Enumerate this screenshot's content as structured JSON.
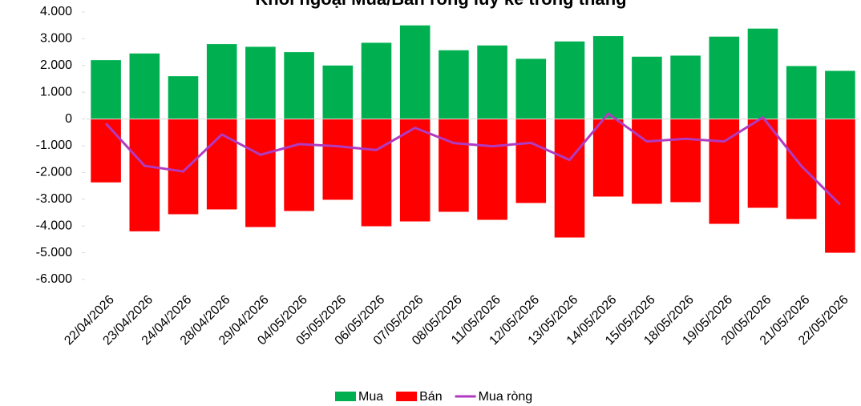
{
  "chart_data": {
    "type": "bar",
    "title": "Khối ngoại Mua/Bán ròng lũy kế trong tháng",
    "categories": [
      "22/04/2026",
      "23/04/2026",
      "24/04/2026",
      "28/04/2026",
      "29/04/2026",
      "04/05/2026",
      "05/05/2026",
      "06/05/2026",
      "07/05/2026",
      "08/05/2026",
      "11/05/2026",
      "12/05/2026",
      "13/05/2026",
      "14/05/2026",
      "15/05/2026",
      "18/05/2026",
      "19/05/2026",
      "20/05/2026",
      "21/05/2026",
      "22/05/2026"
    ],
    "series": [
      {
        "name": "Mua",
        "color": "#00b050",
        "type": "bar",
        "values": [
          2200,
          2450,
          1600,
          2800,
          2700,
          2500,
          2000,
          2850,
          3500,
          2570,
          2750,
          2250,
          2900,
          3100,
          2330,
          2370,
          3080,
          3380,
          1980,
          1800
        ]
      },
      {
        "name": "Bán",
        "color": "#ff0000",
        "type": "bar",
        "values": [
          -2370,
          -4200,
          -3560,
          -3380,
          -4040,
          -3440,
          -3020,
          -4010,
          -3830,
          -3470,
          -3770,
          -3140,
          -4430,
          -2900,
          -3170,
          -3110,
          -3920,
          -3320,
          -3740,
          -5000
        ]
      },
      {
        "name": "Mua ròng",
        "color": "#b03ac0",
        "type": "line",
        "values": [
          -170,
          -1750,
          -1960,
          -580,
          -1340,
          -940,
          -1020,
          -1160,
          -330,
          -900,
          -1020,
          -890,
          -1530,
          200,
          -840,
          -740,
          -840,
          60,
          -1760,
          -3200
        ]
      }
    ],
    "ylim": [
      -6000,
      4000
    ],
    "yticks": [
      {
        "value": 4000,
        "label": "4.000"
      },
      {
        "value": 3000,
        "label": "3.000"
      },
      {
        "value": 2000,
        "label": "2.000"
      },
      {
        "value": 1000,
        "label": "1.000"
      },
      0,
      {
        "value": -1000,
        "label": "-1.000"
      },
      {
        "value": -2000,
        "label": "-2.000"
      },
      {
        "value": -3000,
        "label": "-3.000"
      },
      {
        "value": -4000,
        "label": "-4.000"
      },
      {
        "value": -5000,
        "label": "-5.000"
      },
      {
        "value": -6000,
        "label": "-6.000"
      }
    ],
    "legend": "bottom"
  }
}
